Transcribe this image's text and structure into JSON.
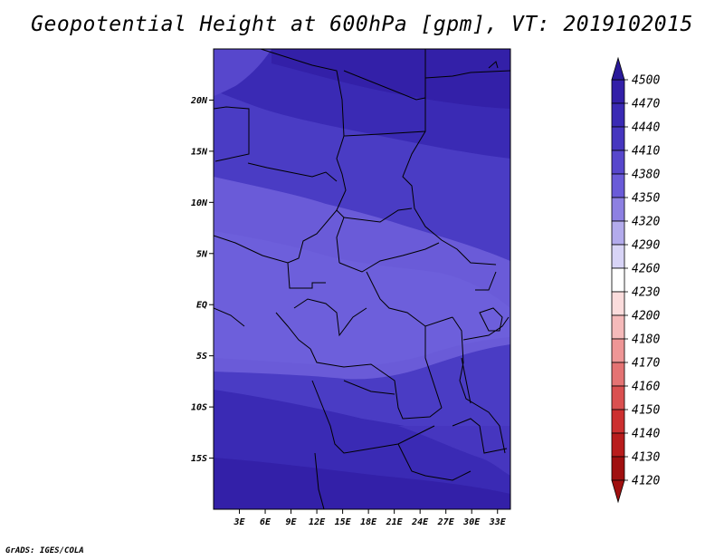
{
  "title": "Geopotential Height at 600hPa [gpm], VT: 2019102015",
  "credit": "GrADS: IGES/COLA",
  "map": {
    "region": "Central Africa",
    "lat_ticks": [
      "20N",
      "15N",
      "10N",
      "5N",
      "EQ",
      "5S",
      "10S",
      "15S"
    ],
    "lon_ticks": [
      "3E",
      "6E",
      "9E",
      "12E",
      "15E",
      "18E",
      "21E",
      "24E",
      "27E",
      "30E",
      "33E"
    ],
    "lat_range": [
      -20,
      25
    ],
    "lon_range": [
      0,
      34.5
    ],
    "field": "Geopotential Height at 600hPa",
    "units": "gpm",
    "valid_time": "2019102015"
  },
  "legend": {
    "levels": [
      "4500",
      "4470",
      "4440",
      "4410",
      "4380",
      "4350",
      "4320",
      "4290",
      "4260",
      "4230",
      "4200",
      "4180",
      "4170",
      "4160",
      "4150",
      "4140",
      "4130",
      "4120"
    ],
    "colors": [
      "#2a1a9a",
      "#3320a8",
      "#3a2ab4",
      "#4636bf",
      "#5747cc",
      "#6a5bd8",
      "#8d80e2",
      "#b3abec",
      "#d8d4f6",
      "#ffffff",
      "#fbdcdc",
      "#f5baba",
      "#ee9696",
      "#e47373",
      "#da5050",
      "#cc3030",
      "#b81c1c",
      "#a01010"
    ]
  }
}
